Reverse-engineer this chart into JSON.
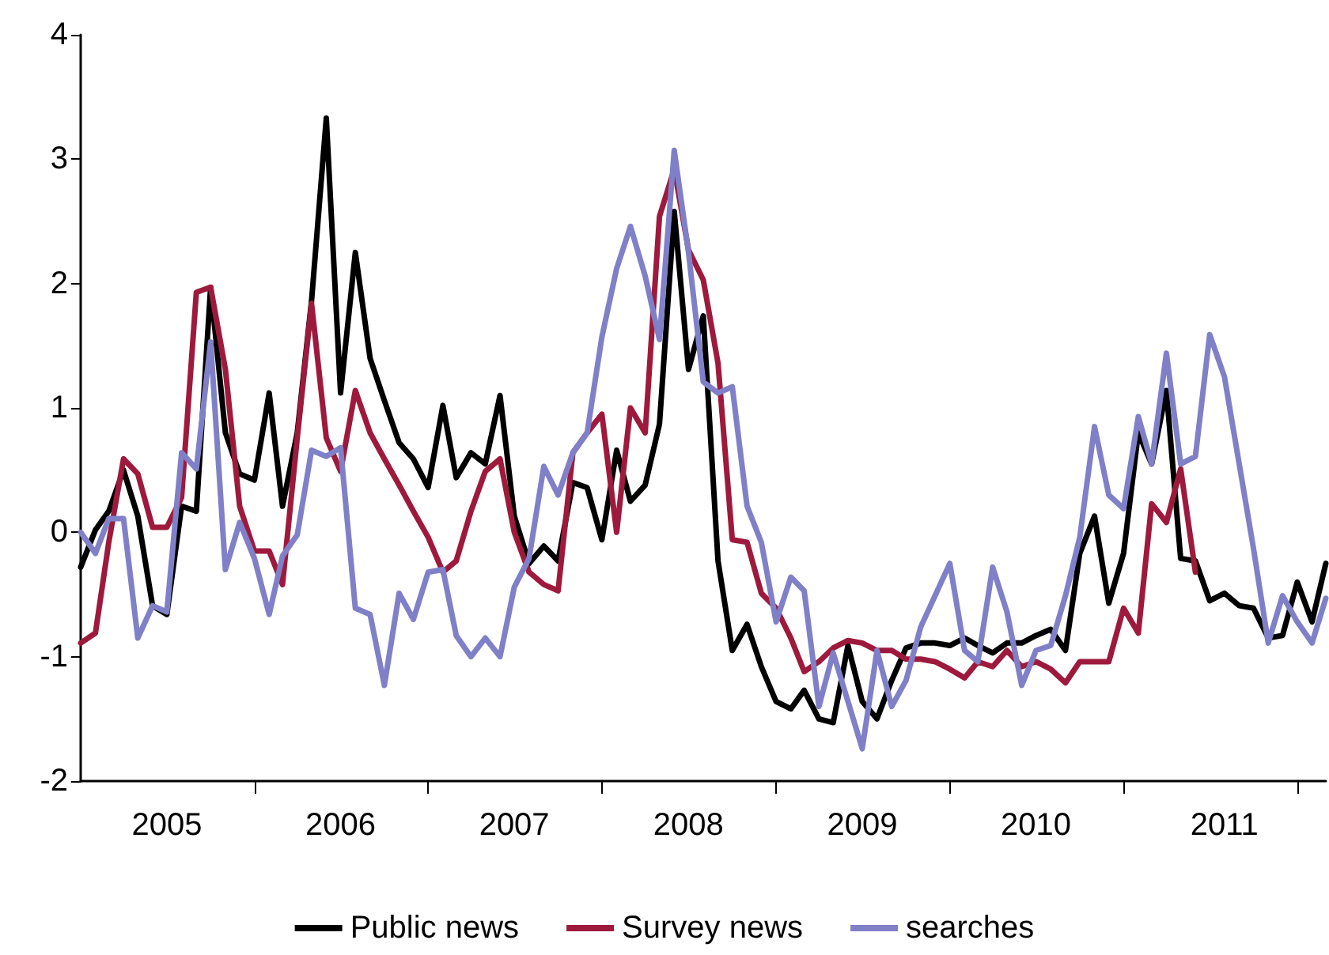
{
  "chart_data": {
    "type": "line",
    "x": [
      "2005-01",
      "2005-02",
      "2005-03",
      "2005-04",
      "2005-05",
      "2005-06",
      "2005-07",
      "2005-08",
      "2005-09",
      "2005-10",
      "2005-11",
      "2005-12",
      "2006-01",
      "2006-02",
      "2006-03",
      "2006-04",
      "2006-05",
      "2006-06",
      "2006-07",
      "2006-08",
      "2006-09",
      "2006-10",
      "2006-11",
      "2006-12",
      "2007-01",
      "2007-02",
      "2007-03",
      "2007-04",
      "2007-05",
      "2007-06",
      "2007-07",
      "2007-08",
      "2007-09",
      "2007-10",
      "2007-11",
      "2007-12",
      "2008-01",
      "2008-02",
      "2008-03",
      "2008-04",
      "2008-05",
      "2008-06",
      "2008-07",
      "2008-08",
      "2008-09",
      "2008-10",
      "2008-11",
      "2008-12",
      "2009-01",
      "2009-02",
      "2009-03",
      "2009-04",
      "2009-05",
      "2009-06",
      "2009-07",
      "2009-08",
      "2009-09",
      "2009-10",
      "2009-11",
      "2009-12",
      "2010-01",
      "2010-02",
      "2010-03",
      "2010-04",
      "2010-05",
      "2010-06",
      "2010-07",
      "2010-08",
      "2010-09",
      "2010-10",
      "2010-11",
      "2010-12",
      "2011-01",
      "2011-02",
      "2011-03",
      "2011-04",
      "2011-05",
      "2011-06",
      "2011-07",
      "2011-08",
      "2011-09",
      "2011-10",
      "2011-11",
      "2011-12",
      "2012-01",
      "2012-02",
      "2012-03"
    ],
    "series": [
      {
        "name": "Public news",
        "color": "#000000",
        "values": [
          -0.28,
          0.02,
          0.17,
          0.5,
          0.13,
          -0.59,
          -0.66,
          0.21,
          0.17,
          1.97,
          0.8,
          0.47,
          0.42,
          1.12,
          0.21,
          0.8,
          1.86,
          3.33,
          1.12,
          2.25,
          1.4,
          1.06,
          0.72,
          0.59,
          0.36,
          1.02,
          0.44,
          0.64,
          0.55,
          1.1,
          0.13,
          -0.25,
          -0.11,
          -0.23,
          0.4,
          0.36,
          -0.06,
          0.66,
          0.25,
          0.38,
          0.87,
          2.58,
          1.31,
          1.74,
          -0.23,
          -0.95,
          -0.74,
          -1.08,
          -1.36,
          -1.42,
          -1.27,
          -1.5,
          -1.53,
          -0.91,
          -1.36,
          -1.5,
          -1.19,
          -0.93,
          -0.89,
          -0.89,
          -0.91,
          -0.85,
          -0.91,
          -0.97,
          -0.89,
          -0.89,
          -0.83,
          -0.78,
          -0.95,
          -0.17,
          0.13,
          -0.57,
          -0.17,
          0.8,
          0.55,
          1.14,
          -0.21,
          -0.23,
          -0.55,
          -0.49,
          -0.59,
          -0.61,
          -0.85,
          -0.83,
          -0.4,
          -0.72,
          -0.25
        ]
      },
      {
        "name": "Survey news",
        "color": "#9e1a3c",
        "values": [
          -0.89,
          -0.81,
          -0.08,
          0.59,
          0.47,
          0.04,
          0.04,
          0.28,
          1.93,
          1.97,
          1.31,
          0.21,
          -0.15,
          -0.15,
          -0.42,
          0.76,
          1.84,
          0.76,
          0.49,
          1.14,
          0.8,
          0.59,
          0.38,
          0.17,
          -0.04,
          -0.32,
          -0.23,
          0.17,
          0.49,
          0.59,
          0,
          -0.32,
          -0.42,
          -0.47,
          0.64,
          0.8,
          0.95,
          0,
          1.0,
          0.8,
          2.54,
          2.92,
          2.27,
          2.03,
          1.36,
          -0.06,
          -0.08,
          -0.49,
          -0.61,
          -0.85,
          -1.12,
          -1.04,
          -0.93,
          -0.87,
          -0.89,
          -0.95,
          -0.95,
          -1.02,
          -1.02,
          -1.04,
          -1.1,
          -1.17,
          -1.04,
          -1.08,
          -0.95,
          -1.08,
          -1.04,
          -1.1,
          -1.21,
          -1.04,
          -1.04,
          -1.04,
          -0.61,
          -0.81,
          0.23,
          0.08,
          0.51,
          -0.32,
          null,
          null,
          null,
          null,
          null,
          null,
          null,
          null,
          null
        ]
      },
      {
        "name": "searches",
        "color": "#8080c8",
        "values": [
          0,
          -0.17,
          0.11,
          0.11,
          -0.85,
          -0.59,
          -0.64,
          0.64,
          0.51,
          1.53,
          -0.3,
          0.08,
          -0.21,
          -0.66,
          -0.19,
          -0.02,
          0.66,
          0.61,
          0.68,
          -0.61,
          -0.66,
          -1.23,
          -0.49,
          -0.7,
          -0.32,
          -0.3,
          -0.83,
          -1.0,
          -0.85,
          -1.0,
          -0.44,
          -0.21,
          0.53,
          0.3,
          0.64,
          0.8,
          1.57,
          2.12,
          2.46,
          2.06,
          1.55,
          3.07,
          2.25,
          1.21,
          1.12,
          1.17,
          0.21,
          -0.08,
          -0.72,
          -0.36,
          -0.47,
          -1.4,
          -0.97,
          -1.36,
          -1.74,
          -0.95,
          -1.4,
          -1.19,
          -0.76,
          -0.51,
          -0.25,
          -0.95,
          -1.04,
          -0.28,
          -0.64,
          -1.23,
          -0.95,
          -0.91,
          -0.51,
          -0.04,
          0.85,
          0.3,
          0.19,
          0.93,
          0.55,
          1.44,
          0.55,
          0.61,
          1.59,
          1.25,
          0.55,
          -0.13,
          -0.89,
          -0.51,
          -0.72,
          -0.89,
          -0.53
        ]
      }
    ],
    "xlim": [
      "2005-01",
      "2012-03"
    ],
    "xticks": [
      {
        "value": "2005-07",
        "label": "2005"
      },
      {
        "value": "2006-07",
        "label": "2006"
      },
      {
        "value": "2007-07",
        "label": "2007"
      },
      {
        "value": "2008-07",
        "label": "2008"
      },
      {
        "value": "2009-07",
        "label": "2009"
      },
      {
        "value": "2010-07",
        "label": "2010"
      },
      {
        "value": "2011-08",
        "label": "2011"
      },
      {
        "value": "2006-01",
        "label": null
      },
      {
        "value": "2007-01",
        "label": null
      },
      {
        "value": "2008-01",
        "label": null
      },
      {
        "value": "2009-01",
        "label": null
      },
      {
        "value": "2010-01",
        "label": null
      },
      {
        "value": "2011-01",
        "label": null
      },
      {
        "value": "2012-01",
        "label": null
      }
    ],
    "ylim": [
      -2,
      4
    ],
    "yticks": [
      -2,
      -1,
      0,
      1,
      2,
      3,
      4
    ],
    "grid": false,
    "legend": "bottom",
    "marker": "none",
    "line_style": "solid"
  }
}
